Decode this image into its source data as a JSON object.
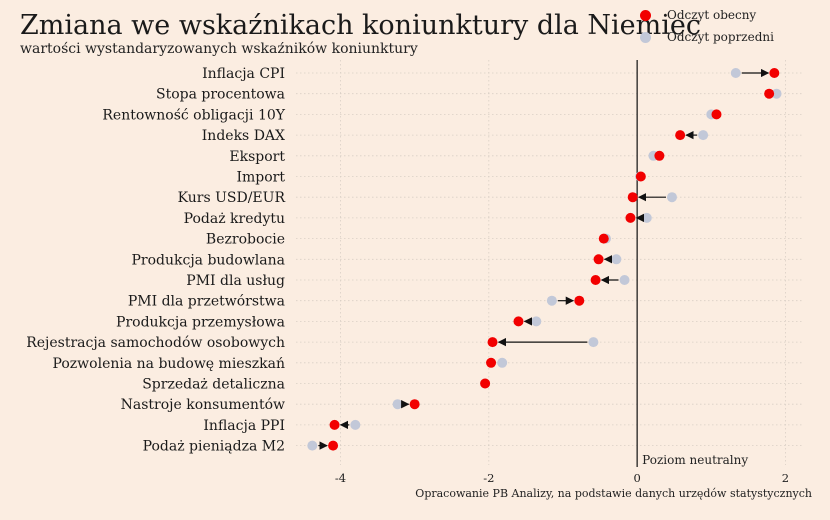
{
  "title": "Zmiana we wskaźnikach koniunktury dla Niemiec",
  "subtitle": "wartości wystandaryzowanych wskaźników koniunktury",
  "source": "Opracowanie PB Analizy, na podstawie danych urzędów statystycznych",
  "colors": {
    "current": "#f20000",
    "previous": "#c2c8d8",
    "background": "#fbede1"
  },
  "chart_data": {
    "type": "scatter",
    "title": "Zmiana we wskaźnikach koniunktury dla Niemiec",
    "subtitle": "wartości wystandaryzowanych wskaźników koniunktury",
    "xlim": [
      -4.6,
      2.25
    ],
    "xticks": [
      -4,
      -2,
      0,
      2
    ],
    "xtick_labels": [
      "-4",
      "-2",
      "0",
      "2"
    ],
    "grid": true,
    "legend_position": "top-right",
    "reference_line": {
      "x": 0,
      "label": "Poziom neutralny"
    },
    "series": [
      {
        "name": "Odczyt obecny"
      },
      {
        "name": "Odczyt poprzedni"
      }
    ],
    "categories": [
      "Inflacja CPI",
      "Stopa procentowa",
      "Rentowność obligacji 10Y",
      "Indeks DAX",
      "Eksport",
      "Import",
      "Kurs USD/EUR",
      "Podaż kredytu",
      "Bezrobocie",
      "Produkcja budowlana",
      "PMI dla usług",
      "PMI dla przetwórstwa",
      "Produkcja przemysłowa",
      "Rejestracja samochodów osobowych",
      "Pozwolenia na budowę mieszkań",
      "Sprzedaż detaliczna",
      "Nastroje konsumentów",
      "Inflacja PPI",
      "Podaż pieniądza M2"
    ],
    "current": [
      1.85,
      1.78,
      1.07,
      0.58,
      0.3,
      0.05,
      -0.06,
      -0.09,
      -0.45,
      -0.52,
      -0.56,
      -0.78,
      -1.6,
      -1.95,
      -1.97,
      -2.05,
      -3.0,
      -4.08,
      -4.1
    ],
    "previous": [
      1.33,
      1.88,
      1.0,
      0.89,
      0.22,
      0.04,
      0.47,
      0.13,
      -0.42,
      -0.28,
      -0.17,
      -1.15,
      -1.36,
      -0.59,
      -1.82,
      -2.05,
      -3.23,
      -3.8,
      -4.38
    ]
  }
}
